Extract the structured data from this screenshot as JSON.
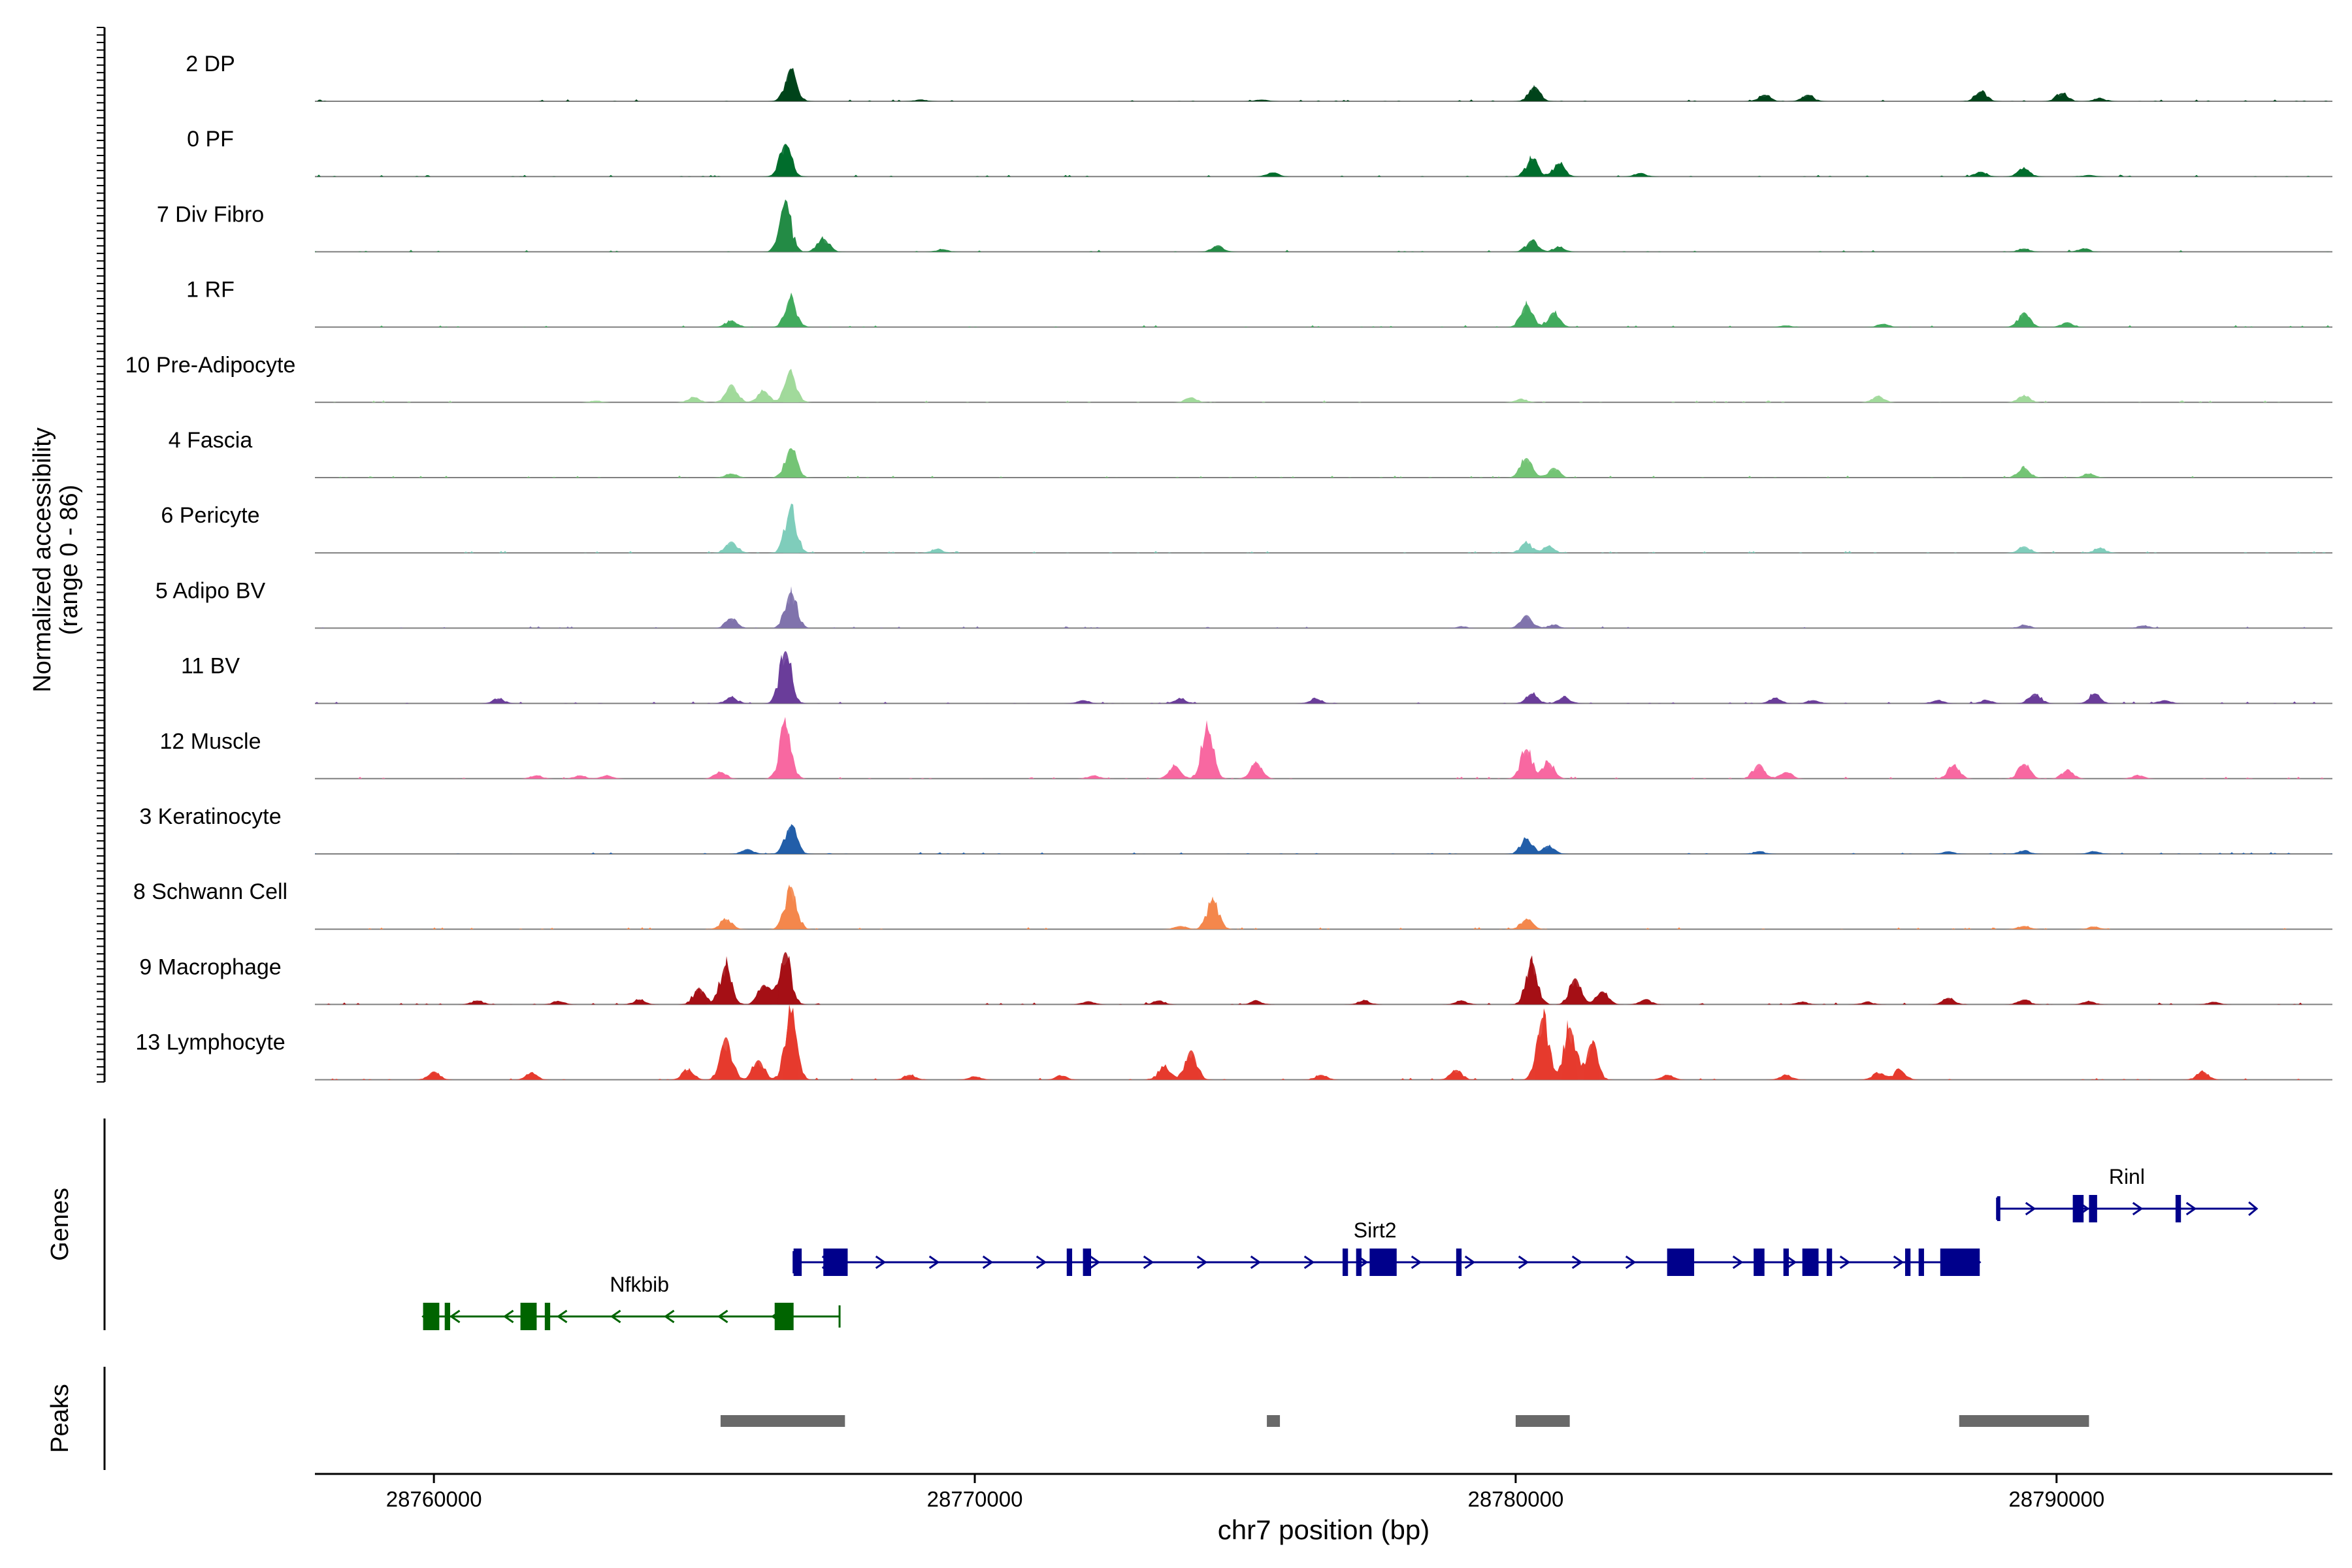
{
  "chart_data": {
    "type": "area",
    "title": "",
    "xlabel": "chr7 position (bp)",
    "ylabel_line1": "Normalized accessibility",
    "ylabel_line2": "(range 0 - 86)",
    "ylim": [
      0,
      86
    ],
    "xlim": [
      28757800,
      28795100
    ],
    "xticks": [
      28760000,
      28770000,
      28780000,
      28790000
    ],
    "xtick_labels": [
      "28760000",
      "28770000",
      "28780000",
      "28790000"
    ],
    "tracks": [
      {
        "name": "2 DP",
        "color": "#00441b",
        "peaks": [
          [
            28766600,
            1.0
          ],
          [
            28780350,
            0.45
          ],
          [
            28784600,
            0.2
          ],
          [
            28785400,
            0.2
          ],
          [
            28788600,
            0.3
          ],
          [
            28790100,
            0.25
          ],
          [
            28790800,
            0.1
          ],
          [
            28775300,
            0.05
          ],
          [
            28769000,
            0.05
          ]
        ]
      },
      {
        "name": "0 PF",
        "color": "#006d2c",
        "peaks": [
          [
            28766500,
            1.0
          ],
          [
            28780300,
            0.55
          ],
          [
            28780800,
            0.4
          ],
          [
            28775500,
            0.12
          ],
          [
            28782300,
            0.1
          ],
          [
            28788600,
            0.15
          ],
          [
            28789400,
            0.25
          ],
          [
            28790600,
            0.05
          ]
        ]
      },
      {
        "name": "7 Div Fibro",
        "color": "#238b45",
        "peaks": [
          [
            28766500,
            1.4
          ],
          [
            28767200,
            0.4
          ],
          [
            28774500,
            0.2
          ],
          [
            28780300,
            0.35
          ],
          [
            28780800,
            0.15
          ],
          [
            28790500,
            0.1
          ],
          [
            28769400,
            0.08
          ],
          [
            28789400,
            0.1
          ]
        ]
      },
      {
        "name": "1 RF",
        "color": "#41ab5d",
        "peaks": [
          [
            28766600,
            0.9
          ],
          [
            28765500,
            0.2
          ],
          [
            28780200,
            0.7
          ],
          [
            28780700,
            0.45
          ],
          [
            28789400,
            0.45
          ],
          [
            28790200,
            0.15
          ],
          [
            28786800,
            0.1
          ],
          [
            28785000,
            0.05
          ]
        ]
      },
      {
        "name": "10 Pre-Adipocyte",
        "color": "#a1d99b",
        "peaks": [
          [
            28766600,
            0.9
          ],
          [
            28765500,
            0.55
          ],
          [
            28766100,
            0.35
          ],
          [
            28764800,
            0.15
          ],
          [
            28774000,
            0.15
          ],
          [
            28786700,
            0.2
          ],
          [
            28789400,
            0.2
          ],
          [
            28780100,
            0.1
          ],
          [
            28763000,
            0.05
          ]
        ]
      },
      {
        "name": "4 Fascia",
        "color": "#74c476",
        "peaks": [
          [
            28766600,
            0.9
          ],
          [
            28765500,
            0.12
          ],
          [
            28780200,
            0.6
          ],
          [
            28780700,
            0.3
          ],
          [
            28789400,
            0.3
          ],
          [
            28790600,
            0.12
          ]
        ]
      },
      {
        "name": "6 Pericyte",
        "color": "#7fcdbb",
        "peaks": [
          [
            28766600,
            1.3
          ],
          [
            28765500,
            0.35
          ],
          [
            28769300,
            0.12
          ],
          [
            28780200,
            0.3
          ],
          [
            28780600,
            0.2
          ],
          [
            28789400,
            0.2
          ],
          [
            28790800,
            0.15
          ]
        ]
      },
      {
        "name": "5 Adipo BV",
        "color": "#8073ac",
        "peaks": [
          [
            28766600,
            1.1
          ],
          [
            28765500,
            0.3
          ],
          [
            28780200,
            0.4
          ],
          [
            28780700,
            0.1
          ],
          [
            28789400,
            0.1
          ],
          [
            28791600,
            0.08
          ],
          [
            28779000,
            0.05
          ]
        ]
      },
      {
        "name": "11 BV",
        "color": "#6a3d9a",
        "peaks": [
          [
            28766500,
            1.6
          ],
          [
            28765500,
            0.2
          ],
          [
            28761200,
            0.15
          ],
          [
            28780300,
            0.3
          ],
          [
            28780900,
            0.2
          ],
          [
            28784800,
            0.15
          ],
          [
            28789600,
            0.3
          ],
          [
            28790700,
            0.3
          ],
          [
            28792000,
            0.1
          ],
          [
            28773800,
            0.15
          ],
          [
            28772000,
            0.1
          ],
          [
            28776300,
            0.15
          ],
          [
            28785500,
            0.1
          ],
          [
            28787800,
            0.1
          ],
          [
            28788700,
            0.1
          ]
        ]
      },
      {
        "name": "12 Muscle",
        "color": "#f768a1",
        "peaks": [
          [
            28766500,
            1.6
          ],
          [
            28765300,
            0.2
          ],
          [
            28774300,
            1.5
          ],
          [
            28775200,
            0.5
          ],
          [
            28773700,
            0.4
          ],
          [
            28780200,
            0.9
          ],
          [
            28780600,
            0.5
          ],
          [
            28784500,
            0.45
          ],
          [
            28785000,
            0.2
          ],
          [
            28788100,
            0.4
          ],
          [
            28789400,
            0.45
          ],
          [
            28790200,
            0.25
          ],
          [
            28762700,
            0.1
          ],
          [
            28761900,
            0.1
          ],
          [
            28763200,
            0.1
          ],
          [
            28772200,
            0.1
          ],
          [
            28791500,
            0.1
          ]
        ]
      },
      {
        "name": "3 Keratinocyte",
        "color": "#225ea8",
        "peaks": [
          [
            28766600,
            0.85
          ],
          [
            28765800,
            0.15
          ],
          [
            28780200,
            0.45
          ],
          [
            28780600,
            0.25
          ],
          [
            28784500,
            0.08
          ],
          [
            28788000,
            0.08
          ],
          [
            28789400,
            0.1
          ],
          [
            28790700,
            0.08
          ]
        ]
      },
      {
        "name": "8 Schwann Cell",
        "color": "#f4874c",
        "peaks": [
          [
            28766600,
            1.3
          ],
          [
            28765400,
            0.3
          ],
          [
            28774400,
            0.9
          ],
          [
            28780200,
            0.3
          ],
          [
            28773800,
            0.1
          ],
          [
            28789400,
            0.1
          ],
          [
            28790700,
            0.08
          ]
        ]
      },
      {
        "name": "9 Macrophage",
        "color": "#a50f15",
        "peaks": [
          [
            28766500,
            1.6
          ],
          [
            28765400,
            1.2
          ],
          [
            28764900,
            0.5
          ],
          [
            28766100,
            0.6
          ],
          [
            28780300,
            1.3
          ],
          [
            28781100,
            0.8
          ],
          [
            28781600,
            0.4
          ],
          [
            28782400,
            0.15
          ],
          [
            28788000,
            0.2
          ],
          [
            28789400,
            0.15
          ],
          [
            28790600,
            0.1
          ],
          [
            28763800,
            0.15
          ],
          [
            28760800,
            0.12
          ],
          [
            28762300,
            0.1
          ],
          [
            28772100,
            0.1
          ],
          [
            28773400,
            0.12
          ],
          [
            28775200,
            0.12
          ],
          [
            28777200,
            0.12
          ],
          [
            28779000,
            0.12
          ],
          [
            28785300,
            0.08
          ],
          [
            28786500,
            0.08
          ],
          [
            28792900,
            0.08
          ]
        ]
      },
      {
        "name": "13 Lymphocyte",
        "color": "#e63b2e",
        "peaks": [
          [
            28766600,
            2.0
          ],
          [
            28765400,
            1.3
          ],
          [
            28766000,
            0.6
          ],
          [
            28780500,
            1.9
          ],
          [
            28781000,
            1.6
          ],
          [
            28781400,
            1.1
          ],
          [
            28774000,
            0.9
          ],
          [
            28773500,
            0.4
          ],
          [
            28778900,
            0.3
          ],
          [
            28761800,
            0.2
          ],
          [
            28760000,
            0.25
          ],
          [
            28764700,
            0.3
          ],
          [
            28768800,
            0.15
          ],
          [
            28770000,
            0.1
          ],
          [
            28771600,
            0.12
          ],
          [
            28776400,
            0.15
          ],
          [
            28785000,
            0.15
          ],
          [
            28782800,
            0.15
          ],
          [
            28786700,
            0.2
          ],
          [
            28787100,
            0.3
          ],
          [
            28792700,
            0.25
          ]
        ]
      }
    ],
    "genes": [
      {
        "name": "Sirt2",
        "strand": "+",
        "color": "#00008b",
        "row": 1,
        "start": 28766650,
        "end": 28788580,
        "label_pos": 28777400,
        "exons": [
          [
            28766650,
            28766800
          ],
          [
            28767200,
            28767650
          ],
          [
            28771700,
            28771800
          ],
          [
            28772000,
            28772150
          ],
          [
            28776800,
            28776900
          ],
          [
            28777050,
            28777150
          ],
          [
            28777300,
            28777800
          ],
          [
            28778900,
            28779000
          ],
          [
            28782800,
            28783300
          ],
          [
            28784400,
            28784600
          ],
          [
            28784950,
            28785050
          ],
          [
            28785300,
            28785600
          ],
          [
            28785750,
            28785850
          ],
          [
            28787200,
            28787300
          ],
          [
            28787450,
            28787550
          ],
          [
            28787850,
            28788580
          ]
        ]
      },
      {
        "name": "Nfkbib",
        "strand": "-",
        "color": "#006400",
        "row": 2,
        "start": 28759800,
        "end": 28767500,
        "label_pos": 28763800,
        "exons": [
          [
            28759800,
            28760100
          ],
          [
            28760200,
            28760300
          ],
          [
            28761600,
            28761900
          ],
          [
            28762050,
            28762150
          ],
          [
            28766300,
            28766650
          ]
        ]
      },
      {
        "name": "Rinl",
        "strand": "+",
        "color": "#00008b",
        "row": 0,
        "start": 28788900,
        "end": 28793700,
        "label_pos": 28791300,
        "exons": [
          [
            28788900,
            28788950
          ],
          [
            28790300,
            28790500
          ],
          [
            28790600,
            28790750
          ],
          [
            28792200,
            28792300
          ]
        ]
      }
    ],
    "peak_regions": [
      [
        28765300,
        28767600
      ],
      [
        28775400,
        28775600
      ],
      [
        28780000,
        28781000
      ],
      [
        28788200,
        28790600
      ]
    ]
  },
  "labels": {
    "genes_track": "Genes",
    "peaks_track": "Peaks"
  },
  "colors": {
    "axis": "#000000",
    "baseline": "#7f7f7f",
    "peak_region": "#696969"
  }
}
